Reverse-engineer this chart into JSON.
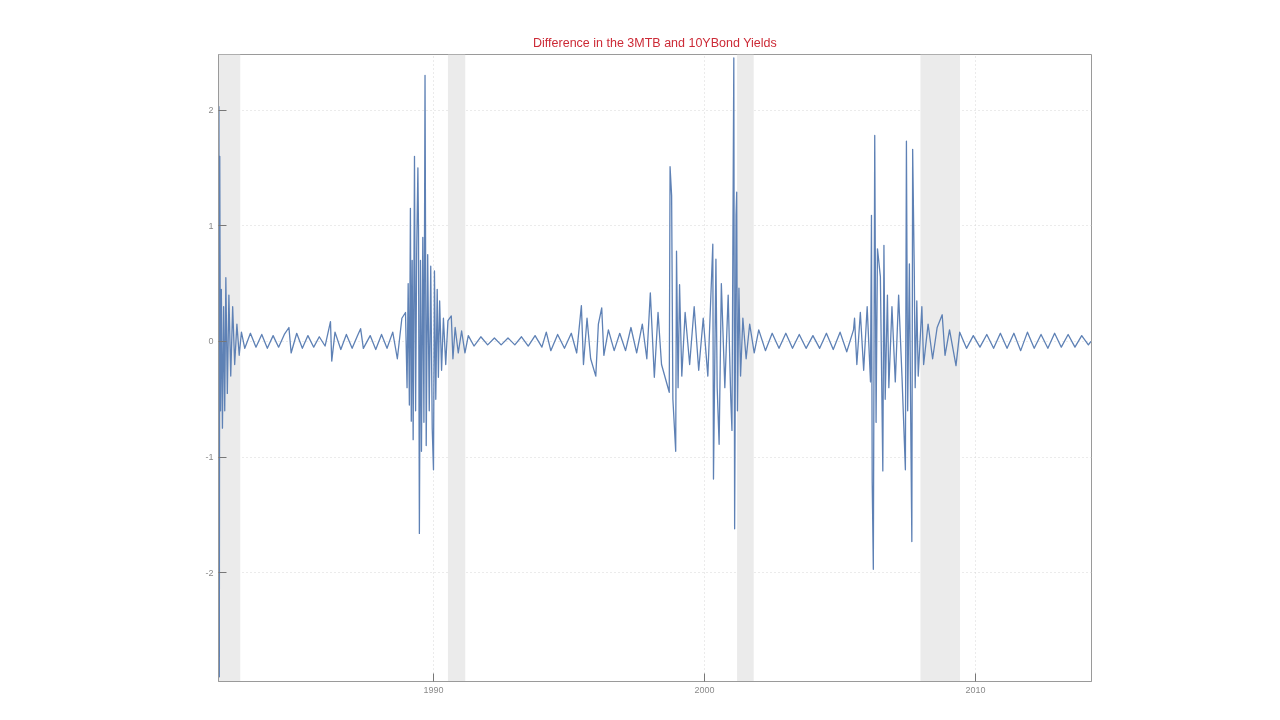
{
  "chart_data": {
    "type": "line",
    "title": "Difference in the 3MTB and 10YBond Yields",
    "x": [
      "1982-01-27",
      "1982-02-01",
      "1982-02-06",
      "1982-02-12",
      "1982-02-22",
      "1982-03-05",
      "1982-03-20",
      "1982-04-05",
      "1982-04-20",
      "1982-05-05",
      "1982-05-25",
      "1982-06-15",
      "1982-07-10",
      "1982-08-05",
      "1982-09-01",
      "1982-10-01",
      "1982-11-01",
      "1982-12-01",
      "1983-01-15",
      "1983-04-01",
      "1983-06-15",
      "1983-09-01",
      "1983-11-15",
      "1984-02-01",
      "1984-04-15",
      "1984-07-01",
      "1984-09-01",
      "1984-10-01",
      "1984-12-15",
      "1985-03-01",
      "1985-05-15",
      "1985-08-01",
      "1985-10-15",
      "1986-01-01",
      "1986-03-15",
      "1986-04-01",
      "1986-05-15",
      "1986-08-01",
      "1986-10-15",
      "1987-01-01",
      "1987-03-15",
      "1987-04-25",
      "1987-06-01",
      "1987-09-01",
      "1987-11-15",
      "1988-02-01",
      "1988-04-15",
      "1988-07-01",
      "1988-09-01",
      "1988-11-01",
      "1988-12-20",
      "1989-01-10",
      "1989-01-25",
      "1989-02-10",
      "1989-02-24",
      "1989-03-08",
      "1989-03-20",
      "1989-04-02",
      "1989-04-20",
      "1989-05-05",
      "1989-05-20",
      "1989-06-05",
      "1989-06-13",
      "1989-06-25",
      "1989-07-10",
      "1989-07-23",
      "1989-08-10",
      "1989-08-25",
      "1989-09-09",
      "1989-09-25",
      "1989-10-15",
      "1989-11-05",
      "1989-11-25",
      "1989-12-15",
      "1990-01-01",
      "1990-01-14",
      "1990-02-01",
      "1990-02-20",
      "1990-03-08",
      "1990-03-25",
      "1990-04-20",
      "1990-05-15",
      "1990-06-15",
      "1990-07-15",
      "1990-08-29",
      "1990-09-20",
      "1990-10-20",
      "1990-12-01",
      "1991-01-15",
      "1991-03-01",
      "1991-04-15",
      "1991-07-01",
      "1991-10-01",
      "1992-01-01",
      "1992-04-01",
      "1992-07-01",
      "1992-10-01",
      "1993-01-01",
      "1993-04-01",
      "1993-07-01",
      "1993-10-01",
      "1994-01-01",
      "1994-03-01",
      "1994-05-01",
      "1994-08-01",
      "1994-11-01",
      "1995-02-01",
      "1995-04-15",
      "1995-06-17",
      "1995-07-15",
      "1995-09-01",
      "1995-10-20",
      "1995-12-28",
      "1996-02-01",
      "1996-03-17",
      "1996-04-15",
      "1996-06-15",
      "1996-09-01",
      "1996-11-15",
      "1997-02-01",
      "1997-04-15",
      "1997-07-01",
      "1997-09-15",
      "1997-11-15",
      "1998-01-01",
      "1998-02-24",
      "1998-04-15",
      "1998-06-01",
      "1998-09-13",
      "1998-09-24",
      "1998-10-15",
      "1998-11-01",
      "1998-12-09",
      "1998-12-20",
      "1999-01-10",
      "1999-01-30",
      "1999-03-01",
      "1999-04-15",
      "1999-06-15",
      "1999-08-15",
      "1999-10-15",
      "1999-12-15",
      "2000-02-15",
      "2000-04-22",
      "2000-05-01",
      "2000-06-03",
      "2000-06-20",
      "2000-07-16",
      "2000-08-15",
      "2000-10-01",
      "2000-11-15",
      "2000-12-20",
      "2001-01-05",
      "2001-01-30",
      "2001-02-10",
      "2001-03-01",
      "2001-03-10",
      "2001-03-20",
      "2001-04-09",
      "2001-05-01",
      "2001-06-01",
      "2001-07-15",
      "2001-09-01",
      "2001-11-01",
      "2002-01-01",
      "2002-04-01",
      "2002-07-01",
      "2002-10-01",
      "2003-01-01",
      "2003-04-01",
      "2003-07-01",
      "2003-10-01",
      "2004-01-01",
      "2004-04-01",
      "2004-07-01",
      "2004-10-01",
      "2005-01-01",
      "2005-04-01",
      "2005-07-01",
      "2005-07-15",
      "2005-08-15",
      "2005-10-01",
      "2005-11-15",
      "2006-01-01",
      "2006-02-15",
      "2006-02-28",
      "2006-03-10",
      "2006-03-25",
      "2006-04-13",
      "2006-05-01",
      "2006-05-20",
      "2006-06-28",
      "2006-07-31",
      "2006-08-15",
      "2006-09-01",
      "2006-10-01",
      "2006-10-20",
      "2006-12-01",
      "2007-01-15",
      "2007-03-01",
      "2007-04-15",
      "2007-05-31",
      "2007-06-14",
      "2007-07-01",
      "2007-07-24",
      "2007-08-15",
      "2007-08-26",
      "2007-09-06",
      "2007-09-28",
      "2007-10-10",
      "2007-11-01",
      "2007-11-20",
      "2008-01-08",
      "2008-02-01",
      "2008-04-01",
      "2008-06-01",
      "2008-08-01",
      "2008-10-08",
      "2008-11-15",
      "2009-01-15",
      "2009-04-12",
      "2009-06-01",
      "2009-09-01",
      "2009-12-01",
      "2010-03-01",
      "2010-06-01",
      "2010-09-01",
      "2010-12-01",
      "2011-03-01",
      "2011-06-01",
      "2011-09-01",
      "2011-12-01",
      "2012-03-01",
      "2012-06-01",
      "2012-09-01",
      "2012-12-01",
      "2013-03-01",
      "2013-06-01",
      "2013-09-01",
      "2013-12-01",
      "2014-03-01",
      "2014-04-05"
    ],
    "series": [
      {
        "color": "#5e81b5",
        "values": [
          -0.3,
          2.03,
          -2.9,
          1.6,
          -0.6,
          0.45,
          -0.75,
          0.3,
          -0.6,
          0.55,
          -0.45,
          0.4,
          -0.3,
          0.3,
          -0.2,
          0.15,
          -0.12,
          0.08,
          -0.06,
          0.07,
          -0.05,
          0.06,
          -0.06,
          0.05,
          -0.05,
          0.06,
          0.12,
          -0.1,
          0.07,
          -0.06,
          0.05,
          -0.05,
          0.04,
          -0.04,
          0.17,
          -0.17,
          0.08,
          -0.07,
          0.06,
          -0.06,
          0.05,
          0.11,
          -0.06,
          0.05,
          -0.07,
          0.06,
          -0.06,
          0.08,
          -0.15,
          0.2,
          0.25,
          -0.4,
          0.5,
          -0.55,
          1.15,
          -0.69,
          0.7,
          -0.85,
          1.6,
          -0.6,
          0.8,
          1.5,
          0.96,
          -1.66,
          0.7,
          -0.95,
          0.9,
          -0.7,
          2.3,
          -0.9,
          0.75,
          -0.6,
          0.65,
          -0.75,
          -1.11,
          0.61,
          -0.5,
          0.45,
          -0.31,
          0.35,
          -0.25,
          0.2,
          -0.2,
          0.18,
          0.22,
          -0.15,
          0.12,
          -0.1,
          0.09,
          -0.1,
          0.05,
          -0.04,
          0.04,
          -0.03,
          0.03,
          -0.03,
          0.03,
          -0.03,
          0.04,
          -0.04,
          0.05,
          -0.05,
          0.08,
          -0.08,
          0.06,
          -0.06,
          0.07,
          -0.1,
          0.31,
          -0.2,
          0.2,
          -0.15,
          -0.3,
          0.15,
          0.29,
          -0.12,
          0.1,
          -0.08,
          0.07,
          -0.08,
          0.12,
          -0.1,
          0.15,
          -0.15,
          0.42,
          -0.31,
          0.25,
          -0.2,
          -0.44,
          1.51,
          1.26,
          -0.5,
          -0.95,
          0.78,
          -0.4,
          0.49,
          -0.3,
          0.25,
          -0.2,
          0.3,
          -0.25,
          0.2,
          -0.3,
          0.84,
          -1.19,
          0.71,
          -0.4,
          -0.89,
          0.5,
          -0.4,
          0.4,
          -0.5,
          -0.77,
          2.45,
          -1.62,
          1.09,
          1.29,
          -0.6,
          0.46,
          -0.3,
          0.2,
          -0.15,
          0.15,
          -0.1,
          0.1,
          -0.08,
          0.07,
          -0.06,
          0.07,
          -0.06,
          0.06,
          -0.06,
          0.05,
          -0.06,
          0.07,
          -0.07,
          0.08,
          -0.09,
          0.1,
          0.2,
          -0.2,
          0.25,
          -0.25,
          0.3,
          -0.35,
          1.09,
          -1.22,
          -1.97,
          1.78,
          -0.7,
          0.8,
          0.56,
          -1.12,
          0.83,
          -0.5,
          0.4,
          -0.4,
          0.3,
          -0.35,
          0.4,
          -0.3,
          -1.11,
          1.73,
          -0.6,
          0.67,
          -0.96,
          -1.73,
          1.66,
          0.6,
          -0.4,
          0.35,
          -0.3,
          0.3,
          -0.2,
          0.15,
          -0.15,
          0.12,
          0.23,
          -0.12,
          0.1,
          -0.21,
          0.08,
          -0.06,
          0.05,
          -0.05,
          0.06,
          -0.06,
          0.07,
          -0.06,
          0.07,
          -0.08,
          0.08,
          -0.06,
          0.06,
          -0.06,
          0.07,
          -0.05,
          0.06,
          -0.05,
          0.05,
          -0.03,
          0.0
        ]
      }
    ],
    "xlim": [
      "1982-01-26",
      "2014-04-12"
    ],
    "xticks": [
      "1990",
      "2000",
      "2010"
    ],
    "ylim": [
      -2.94,
      2.48
    ],
    "yticks": [
      -2,
      -1,
      0,
      1,
      2
    ],
    "bands": [
      {
        "axis": "x",
        "from": "1982-01-26",
        "to": "1982-11-15",
        "color": "#ebebeb"
      },
      {
        "axis": "x",
        "from": "1990-07-15",
        "to": "1991-03-05",
        "color": "#ebebeb"
      },
      {
        "axis": "x",
        "from": "2001-03-15",
        "to": "2001-10-25",
        "color": "#ebebeb"
      },
      {
        "axis": "x",
        "from": "2007-12-20",
        "to": "2009-06-05",
        "color": "#ebebeb"
      }
    ],
    "grid": true
  }
}
